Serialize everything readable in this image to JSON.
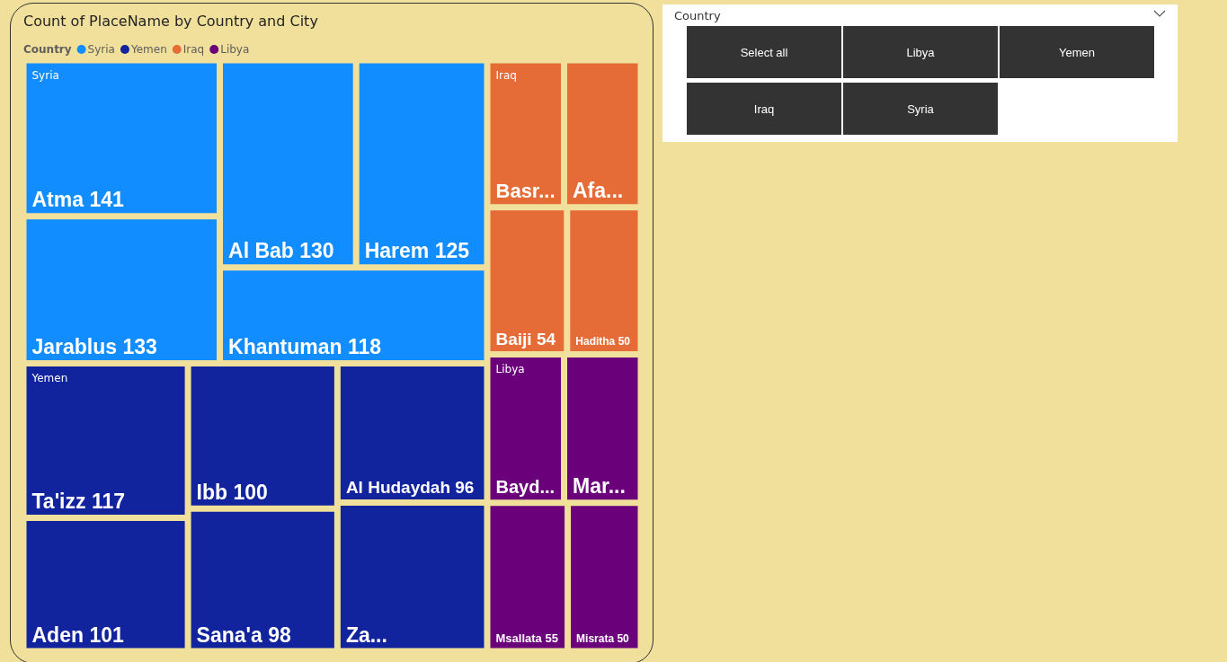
{
  "chart_data": {
    "type": "other",
    "title": "Count of PlaceName by Country and City",
    "legend_title": "Country",
    "legend": "top left",
    "data_labels": true,
    "categories": [
      "Atma",
      "Jarablus",
      "Al Bab",
      "Harem",
      "Khantuman",
      "Ta'izz",
      "Aden",
      "Ibb",
      "Sana'a",
      "Al Hudaydah",
      "Za...",
      "Basr...",
      "Afa...",
      "Baiji",
      "Haditha",
      "Bayd...",
      "Mar...",
      "Msallata",
      "Misrata"
    ],
    "colors": [
      "#118dff",
      "#118dff",
      "#118dff",
      "#118dff",
      "#118dff",
      "#12239e",
      "#12239e",
      "#12239e",
      "#12239e",
      "#12239e",
      "#12239e",
      "#e66c37",
      "#e66c37",
      "#e66c37",
      "#e66c37",
      "#6b007b",
      "#6b007b",
      "#6b007b",
      "#6b007b"
    ],
    "series": [
      {
        "name": "Syria",
        "color": "#118dff",
        "values": [
          141,
          133,
          130,
          125,
          118,
          null,
          null,
          null,
          null,
          null,
          null,
          null,
          null,
          null,
          null,
          null,
          null,
          null,
          null
        ]
      },
      {
        "name": "Yemen",
        "color": "#12239e",
        "values": [
          null,
          null,
          null,
          null,
          null,
          117,
          101,
          100,
          98,
          96,
          null,
          null,
          null,
          null,
          null,
          null,
          null,
          null,
          null
        ]
      },
      {
        "name": "Iraq",
        "color": "#e66c37",
        "values": [
          null,
          null,
          null,
          null,
          null,
          null,
          null,
          null,
          null,
          null,
          null,
          null,
          null,
          54,
          50,
          null,
          null,
          null,
          null
        ]
      },
      {
        "name": "Libya",
        "color": "#6b007b",
        "values": [
          null,
          null,
          null,
          null,
          null,
          null,
          null,
          null,
          null,
          null,
          null,
          null,
          null,
          null,
          null,
          null,
          null,
          55,
          50
        ]
      }
    ],
    "annotations": [
      "Country",
      "Select all",
      "Libya",
      "Yemen",
      "Iraq",
      "Syria"
    ]
  }
}
